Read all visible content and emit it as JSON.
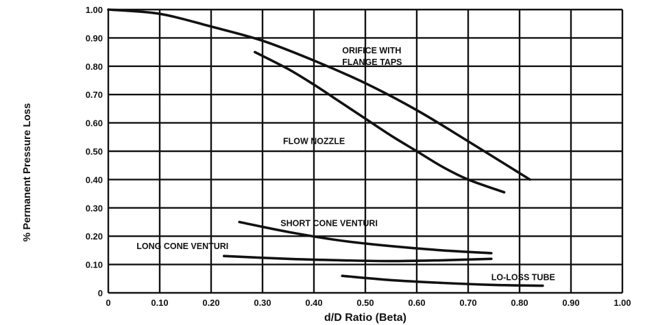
{
  "chart_data": {
    "type": "line",
    "title": "",
    "xlabel": "d/D Ratio (Beta)",
    "ylabel": "% Permanent Pressure Loss",
    "xlim": [
      0,
      1.0
    ],
    "ylim": [
      0,
      1.0
    ],
    "grid": true,
    "x_ticks": [
      "0",
      "0.10",
      "0.20",
      "0.30",
      "0.40",
      "0.50",
      "0.60",
      "0.70",
      "0.80",
      "0.90",
      "1.00"
    ],
    "y_ticks": [
      "0",
      "0.10",
      "0.20",
      "0.30",
      "0.40",
      "0.50",
      "0.60",
      "0.70",
      "0.80",
      "0.90",
      "1.00"
    ],
    "series": [
      {
        "name": "ORIFICE WITH FLANGE TAPS",
        "label_lines": [
          "ORIFICE WITH",
          "FLANGE TAPS"
        ],
        "x": [
          0.0,
          0.1,
          0.2,
          0.3,
          0.4,
          0.5,
          0.6,
          0.7,
          0.82
        ],
        "y": [
          1.0,
          0.985,
          0.94,
          0.89,
          0.82,
          0.74,
          0.645,
          0.535,
          0.4
        ]
      },
      {
        "name": "FLOW NOZZLE",
        "label_lines": [
          "FLOW NOZZLE"
        ],
        "x": [
          0.285,
          0.35,
          0.4,
          0.45,
          0.5,
          0.55,
          0.6,
          0.65,
          0.7,
          0.77
        ],
        "y": [
          0.85,
          0.79,
          0.735,
          0.675,
          0.615,
          0.555,
          0.5,
          0.445,
          0.4,
          0.355
        ]
      },
      {
        "name": "SHORT CONE VENTURI",
        "label_lines": [
          "SHORT CONE VENTURI"
        ],
        "x": [
          0.255,
          0.35,
          0.45,
          0.55,
          0.65,
          0.745
        ],
        "y": [
          0.25,
          0.215,
          0.185,
          0.165,
          0.15,
          0.14
        ]
      },
      {
        "name": "LONG CONE VENTURI",
        "label_lines": [
          "LONG CONE VENTURI"
        ],
        "x": [
          0.225,
          0.35,
          0.45,
          0.55,
          0.65,
          0.745
        ],
        "y": [
          0.13,
          0.12,
          0.115,
          0.112,
          0.115,
          0.12
        ]
      },
      {
        "name": "LO-LOSS TUBE",
        "label_lines": [
          "LO-LOSS TUBE"
        ],
        "x": [
          0.455,
          0.55,
          0.65,
          0.75,
          0.845
        ],
        "y": [
          0.06,
          0.045,
          0.035,
          0.028,
          0.025
        ]
      }
    ]
  }
}
